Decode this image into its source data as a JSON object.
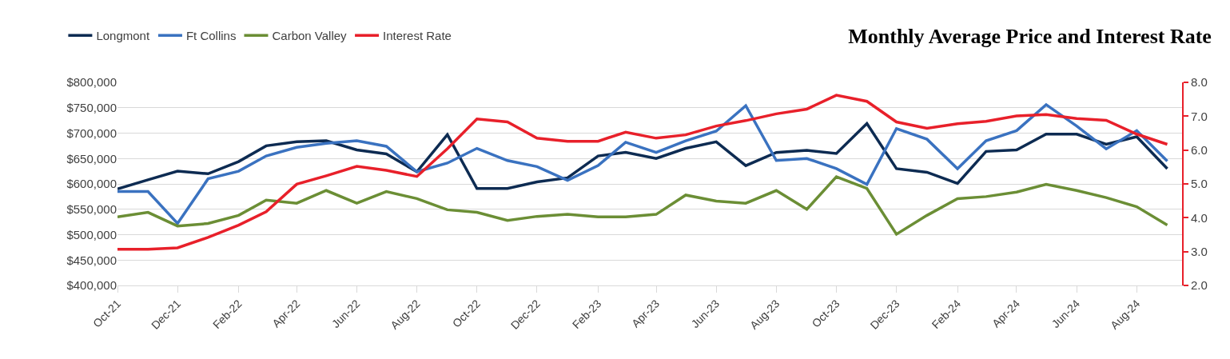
{
  "chart_data": {
    "type": "line",
    "title": "Monthly Average Price and Interest Rate",
    "x": [
      "2021-10",
      "2021-11",
      "2021-12",
      "2022-01",
      "2022-02",
      "2022-03",
      "2022-04",
      "2022-05",
      "2022-06",
      "2022-07",
      "2022-08",
      "2022-09",
      "2022-10",
      "2022-11",
      "2022-12",
      "2023-01",
      "2023-02",
      "2023-03",
      "2023-04",
      "2023-05",
      "2023-06",
      "2023-07",
      "2023-08",
      "2023-09",
      "2023-10",
      "2023-11",
      "2023-12",
      "2024-01",
      "2024-02",
      "2024-03",
      "2024-04",
      "2024-05",
      "2024-06",
      "2024-07",
      "2024-08",
      "2024-09"
    ],
    "series": [
      {
        "name": "Longmont",
        "color": "#0d2b52",
        "values": [
          590000,
          608000,
          625000,
          620000,
          644000,
          675000,
          683000,
          685000,
          667000,
          659000,
          624000,
          697000,
          591000,
          591000,
          604000,
          612000,
          655000,
          662000,
          650000,
          670000,
          683000,
          636000,
          662000,
          666000,
          660000,
          719000,
          630000,
          623000,
          601000,
          664000,
          667000,
          698000,
          698000,
          678000,
          693000,
          630000
        ]
      },
      {
        "name": "Ft Collins",
        "color": "#3a72c0",
        "values": [
          585000,
          585000,
          522000,
          610000,
          625000,
          655000,
          672000,
          680000,
          685000,
          674000,
          624000,
          641000,
          670000,
          646000,
          634000,
          607000,
          636000,
          682000,
          662000,
          685000,
          704000,
          754000,
          646000,
          650000,
          630000,
          599000,
          709000,
          688000,
          630000,
          685000,
          705000,
          756000,
          714000,
          669000,
          705000,
          645000
        ]
      },
      {
        "name": "Carbon Valley",
        "color": "#6b8e35",
        "values": [
          535000,
          544000,
          517000,
          522000,
          538000,
          568000,
          562000,
          587000,
          562000,
          585000,
          571000,
          549000,
          544000,
          528000,
          536000,
          540000,
          535000,
          535000,
          540000,
          578000,
          566000,
          562000,
          587000,
          550000,
          614000,
          591000,
          501000,
          538000,
          571000,
          575000,
          584000,
          599000,
          587000,
          573000,
          555000,
          519000
        ]
      },
      {
        "name": "Interest Rate",
        "color": "#e8202a",
        "axis": "y2",
        "values": [
          3.07,
          3.07,
          3.11,
          3.42,
          3.78,
          4.18,
          4.99,
          5.24,
          5.52,
          5.4,
          5.22,
          6.04,
          6.92,
          6.83,
          6.35,
          6.26,
          6.26,
          6.53,
          6.35,
          6.45,
          6.71,
          6.87,
          7.07,
          7.21,
          7.62,
          7.44,
          6.83,
          6.64,
          6.78,
          6.85,
          7.01,
          7.05,
          6.93,
          6.88,
          6.47,
          6.17
        ]
      }
    ],
    "xlim": [
      "2021-10",
      "2024-09-16"
    ],
    "xticks": [
      {
        "value": "2021-10",
        "label": "Oct-21"
      },
      {
        "value": "2021-12",
        "label": "Dec-21"
      },
      {
        "value": "2022-02",
        "label": "Feb-22"
      },
      {
        "value": "2022-04",
        "label": "Apr-22"
      },
      {
        "value": "2022-06",
        "label": "Jun-22"
      },
      {
        "value": "2022-08",
        "label": "Aug-22"
      },
      {
        "value": "2022-10",
        "label": "Oct-22"
      },
      {
        "value": "2022-12",
        "label": "Dec-22"
      },
      {
        "value": "2023-02",
        "label": "Feb-23"
      },
      {
        "value": "2023-04",
        "label": "Apr-23"
      },
      {
        "value": "2023-06",
        "label": "Jun-23"
      },
      {
        "value": "2023-08",
        "label": "Aug-23"
      },
      {
        "value": "2023-10",
        "label": "Oct-23"
      },
      {
        "value": "2023-12",
        "label": "Dec-23"
      },
      {
        "value": "2024-02",
        "label": "Feb-24"
      },
      {
        "value": "2024-04",
        "label": "Apr-24"
      },
      {
        "value": "2024-06",
        "label": "Jun-24"
      },
      {
        "value": "2024-08",
        "label": "Aug-24"
      }
    ],
    "ylim": [
      400000,
      800000
    ],
    "yticks": [
      {
        "value": 400000,
        "label": "$400,000"
      },
      {
        "value": 450000,
        "label": "$450,000"
      },
      {
        "value": 500000,
        "label": "$500,000"
      },
      {
        "value": 550000,
        "label": "$550,000"
      },
      {
        "value": 600000,
        "label": "$600,000"
      },
      {
        "value": 650000,
        "label": "$650,000"
      },
      {
        "value": 700000,
        "label": "$700,000"
      },
      {
        "value": 750000,
        "label": "$750,000"
      },
      {
        "value": 800000,
        "label": "$800,000"
      }
    ],
    "y2lim": [
      2.0,
      8.0
    ],
    "y2ticks": [
      {
        "value": 2,
        "label": "2.0"
      },
      {
        "value": 3,
        "label": "3.0"
      },
      {
        "value": 4,
        "label": "4.0"
      },
      {
        "value": 5,
        "label": "5.0"
      },
      {
        "value": 6,
        "label": "6.0"
      },
      {
        "value": 7,
        "label": "7.0"
      },
      {
        "value": 8,
        "label": "8.0"
      }
    ],
    "grid": "y",
    "legend": "top left",
    "marker": "none",
    "line_style": "solid"
  }
}
